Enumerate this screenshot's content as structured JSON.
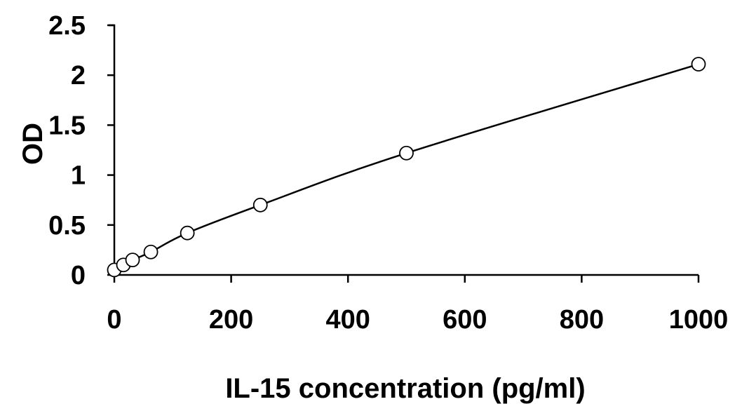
{
  "chart_data": {
    "type": "scatter",
    "title": "",
    "xlabel": "IL-15 concentration (pg/ml)",
    "ylabel": "OD",
    "xlim": [
      0,
      1000
    ],
    "ylim": [
      0,
      2.5
    ],
    "xticks": [
      0,
      200,
      400,
      600,
      800,
      1000
    ],
    "yticks": [
      0,
      0.5,
      1,
      1.5,
      2,
      2.5
    ],
    "xtick_labels": [
      "0",
      "200",
      "400",
      "600",
      "800",
      "1000"
    ],
    "ytick_labels": [
      "0",
      "0.5",
      "1",
      "1.5",
      "2",
      "2.5"
    ],
    "grid": false,
    "legend": "none",
    "series": [
      {
        "x": [
          0,
          15.6,
          31.25,
          62.5,
          125,
          250,
          500,
          1000
        ],
        "y": [
          0.05,
          0.1,
          0.15,
          0.23,
          0.42,
          0.7,
          1.22,
          2.11
        ],
        "marker": "open-circle",
        "line": "smooth",
        "color": "#000000"
      }
    ]
  }
}
